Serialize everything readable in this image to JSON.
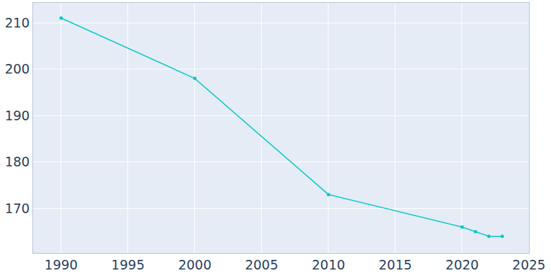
{
  "chart_data": {
    "type": "line",
    "x": [
      1990,
      2000,
      2010,
      2020,
      2021,
      2022,
      2023
    ],
    "values": [
      211,
      198,
      173,
      166,
      165,
      164,
      164
    ],
    "color": "#0bc8c8",
    "marker": "circle",
    "xlim": [
      1987.9,
      2025
    ],
    "xticks": [
      1990,
      1995,
      2000,
      2005,
      2010,
      2015,
      2020,
      2025
    ],
    "ylim": [
      160.4,
      214.3
    ],
    "yticks": [
      170,
      180,
      190,
      200,
      210
    ],
    "grid": true
  }
}
